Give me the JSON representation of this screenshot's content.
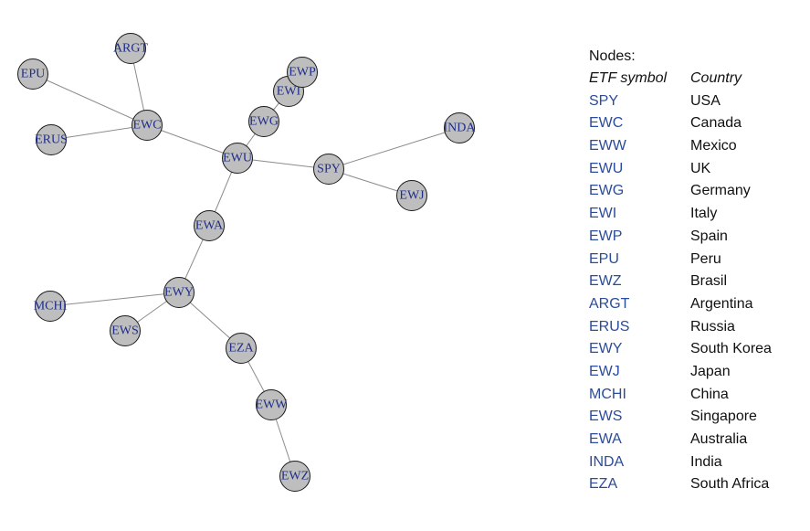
{
  "graph": {
    "nodes": [
      "SPY",
      "EWC",
      "EWW",
      "EWU",
      "EWG",
      "EWI",
      "EWP",
      "EPU",
      "EWZ",
      "ARGT",
      "ERUS",
      "EWY",
      "EWJ",
      "MCHI",
      "EWS",
      "EWA",
      "INDA",
      "EZA"
    ],
    "edges": [
      [
        "EPU",
        "EWC"
      ],
      [
        "ARGT",
        "EWC"
      ],
      [
        "ERUS",
        "EWC"
      ],
      [
        "EWC",
        "EWU"
      ],
      [
        "EWP",
        "EWI"
      ],
      [
        "EWI",
        "EWG"
      ],
      [
        "EWG",
        "EWU"
      ],
      [
        "EWU",
        "SPY"
      ],
      [
        "SPY",
        "INDA"
      ],
      [
        "SPY",
        "EWJ"
      ],
      [
        "EWU",
        "EWA"
      ],
      [
        "EWA",
        "EWY"
      ],
      [
        "EWY",
        "MCHI"
      ],
      [
        "EWY",
        "EWS"
      ],
      [
        "EWY",
        "EZA"
      ],
      [
        "EZA",
        "EWW"
      ],
      [
        "EWW",
        "EWZ"
      ]
    ]
  },
  "legend": {
    "title": "Nodes:",
    "col_symbol": "ETF symbol",
    "col_country": "Country",
    "rows": [
      {
        "symbol": "SPY",
        "country": "USA"
      },
      {
        "symbol": "EWC",
        "country": "Canada"
      },
      {
        "symbol": "EWW",
        "country": "Mexico"
      },
      {
        "symbol": "EWU",
        "country": "UK"
      },
      {
        "symbol": "EWG",
        "country": "Germany"
      },
      {
        "symbol": "EWI",
        "country": "Italy"
      },
      {
        "symbol": "EWP",
        "country": "Spain"
      },
      {
        "symbol": "EPU",
        "country": "Peru"
      },
      {
        "symbol": "EWZ",
        "country": "Brasil"
      },
      {
        "symbol": "ARGT",
        "country": "Argentina"
      },
      {
        "symbol": "ERUS",
        "country": "Russia"
      },
      {
        "symbol": "EWY",
        "country": "South Korea"
      },
      {
        "symbol": "EWJ",
        "country": "Japan"
      },
      {
        "symbol": "MCHI",
        "country": "China"
      },
      {
        "symbol": "EWS",
        "country": "Singapore"
      },
      {
        "symbol": "EWA",
        "country": "Australia"
      },
      {
        "symbol": "INDA",
        "country": "India"
      },
      {
        "symbol": "EZA",
        "country": "South Africa"
      }
    ]
  }
}
